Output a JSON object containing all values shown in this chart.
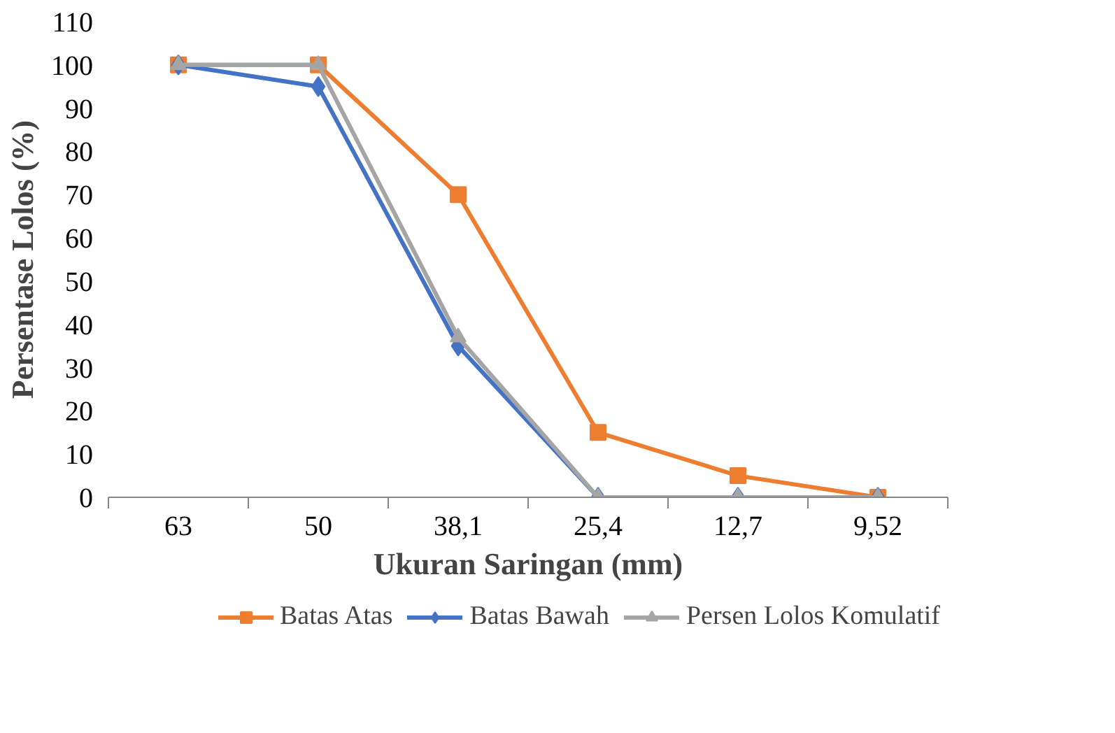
{
  "chart_data": {
    "type": "line",
    "xlabel": "Ukuran Saringan (mm)",
    "ylabel": "Persentase Lolos (%)",
    "categories": [
      "63",
      "50",
      "38,1",
      "25,4",
      "12,7",
      "9,52"
    ],
    "ylim": [
      0,
      110
    ],
    "yticks": [
      0,
      10,
      20,
      30,
      40,
      50,
      60,
      70,
      80,
      90,
      100,
      110
    ],
    "grid": false,
    "legend": "bottom",
    "line_style": "solid",
    "series": [
      {
        "name": "Batas Atas",
        "color": "#ed7d31",
        "marker": "square",
        "values": [
          100,
          100,
          70,
          15,
          5,
          0
        ]
      },
      {
        "name": "Batas Bawah",
        "color": "#4472c4",
        "marker": "diamond",
        "values": [
          100,
          95,
          35,
          0,
          0,
          0
        ]
      },
      {
        "name": "Persen Lolos Komulatif",
        "color": "#a5a5a5",
        "marker": "triangle",
        "values": [
          100,
          100,
          37,
          0,
          0,
          0
        ]
      }
    ]
  }
}
